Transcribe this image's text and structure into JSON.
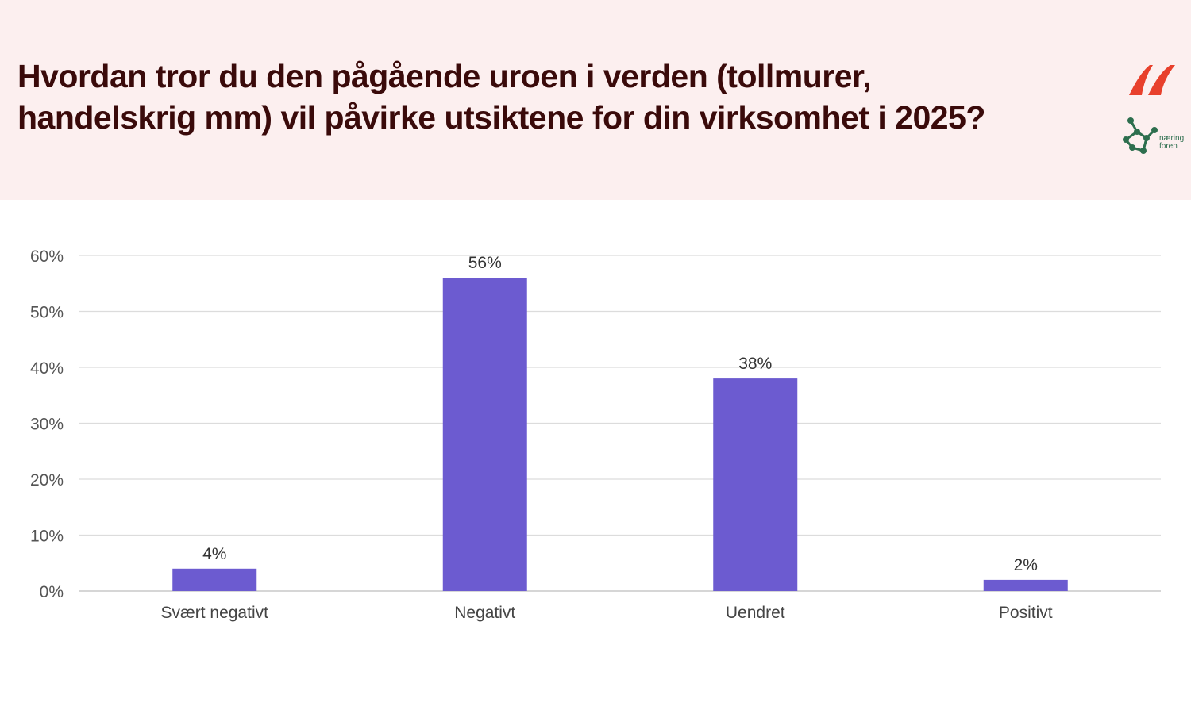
{
  "header": {
    "title_line1": "Hvordan tror du den pågående uroen i verden (tollmurer,",
    "title_line2": "handelskrig mm) vil påvirke utsiktene for din virksomhet i 2025?",
    "background_color": "#fcefef",
    "title_color": "#3a0a0a",
    "logo_text": "næring\nforen"
  },
  "colors": {
    "bar": "#6c5bd0",
    "logo_red": "#e8402c",
    "logo_green": "#2d6e4e"
  },
  "chart_data": {
    "type": "bar",
    "categories": [
      "Svært negativt",
      "Negativt",
      "Uendret",
      "Positivt"
    ],
    "values": [
      4,
      56,
      38,
      2
    ],
    "value_labels": [
      "4%",
      "56%",
      "38%",
      "2%"
    ],
    "yticks": [
      "0%",
      "10%",
      "20%",
      "30%",
      "40%",
      "50%",
      "60%"
    ],
    "ylim": [
      0,
      60
    ],
    "grid": true
  }
}
